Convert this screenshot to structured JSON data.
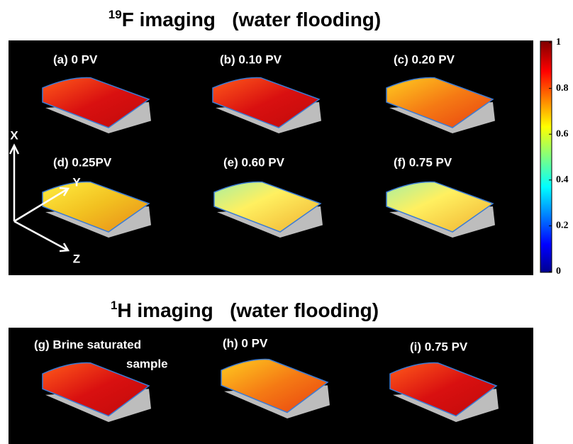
{
  "top": {
    "title_sup": "19",
    "title": "F imaging   (water flooding)",
    "panels": [
      "(a) 0 PV",
      "(b) 0.10 PV",
      "(c) 0.20 PV",
      "(d) 0.25PV",
      "(e) 0.60 PV",
      "(f) 0.75 PV"
    ],
    "axes": [
      "X",
      "Y",
      "Z"
    ]
  },
  "colorbar": {
    "range": [
      0,
      1
    ],
    "ticks": [
      0,
      0.2,
      0.4,
      0.6,
      0.8,
      1
    ]
  },
  "bottom": {
    "title_sup": "1",
    "title": "H imaging   (water flooding)",
    "panels": [
      "(g) Brine saturated",
      "sample",
      "(h) 0 PV",
      "(i) 0.75 PV"
    ]
  }
}
